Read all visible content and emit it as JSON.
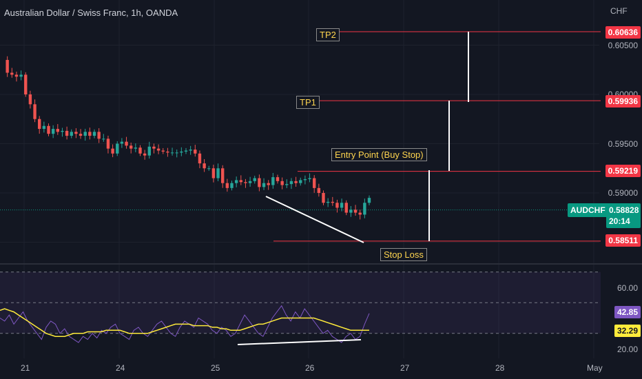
{
  "header": {
    "title": "Australian Dollar / Swiss Franc, 1h, OANDA",
    "currency": "CHF"
  },
  "price_axis": {
    "labels": [
      "0.60500",
      "0.60000",
      "0.59500",
      "0.59000"
    ]
  },
  "rsi_axis": {
    "labels": [
      "60.00",
      "20.00"
    ]
  },
  "time_axis": {
    "labels": [
      "21",
      "24",
      "25",
      "26",
      "27",
      "28",
      "May"
    ]
  },
  "annotations": {
    "tp2": "TP2",
    "tp1": "TP1",
    "entry": "Entry Point (Buy Stop)",
    "stop": "Stop Loss"
  },
  "price_tags": {
    "tp2": "0.60636",
    "tp1": "0.59936",
    "entry": "0.59219",
    "stop": "0.58511",
    "symbol": "AUDCHF",
    "current": "0.58828",
    "countdown": "20:14"
  },
  "rsi_tags": {
    "rsi": "42.85",
    "ma": "32.29"
  },
  "colors": {
    "up": "#26a69a",
    "down": "#ef5350",
    "level": "#f23645",
    "rsi": "#7e57c2",
    "rsi_ma": "#ffeb3b",
    "annotation": "#ffd54f"
  },
  "chart_data": {
    "type": "candlestick",
    "symbol": "AUDCHF",
    "timeframe": "1h",
    "ylim": [
      0.583,
      0.6075
    ],
    "levels": [
      {
        "name": "TP2",
        "value": 0.60636
      },
      {
        "name": "TP1",
        "value": 0.59936
      },
      {
        "name": "Entry Point (Buy Stop)",
        "value": 0.59219
      },
      {
        "name": "Stop Loss",
        "value": 0.58511
      }
    ],
    "last_price": 0.58828,
    "close_path": [
      0.6035,
      0.6022,
      0.602,
      0.6018,
      0.602,
      0.6,
      0.599,
      0.5975,
      0.5965,
      0.5968,
      0.596,
      0.5965,
      0.5962,
      0.5963,
      0.5958,
      0.5962,
      0.596,
      0.5958,
      0.5962,
      0.5958,
      0.5962,
      0.5955,
      0.5955,
      0.5945,
      0.594,
      0.595,
      0.5952,
      0.5948,
      0.5945,
      0.5946,
      0.594,
      0.5938,
      0.5947,
      0.5945,
      0.5943,
      0.5942,
      0.5941,
      0.5941,
      0.5941,
      0.5942,
      0.5943,
      0.5944,
      0.594,
      0.593,
      0.5925,
      0.5925,
      0.5915,
      0.5925,
      0.591,
      0.5905,
      0.591,
      0.5913,
      0.5911,
      0.591,
      0.5912,
      0.5915,
      0.5906,
      0.591,
      0.5908,
      0.5916,
      0.5912,
      0.5908,
      0.5909,
      0.5912,
      0.591,
      0.5913,
      0.5914,
      0.5915,
      0.5905,
      0.59,
      0.589,
      0.5891,
      0.589,
      0.5885,
      0.589,
      0.588,
      0.5883,
      0.588,
      0.5878,
      0.589,
      0.5895
    ],
    "rsi": {
      "name": "RSI",
      "value": 42.85,
      "ma_value": 32.29,
      "levels": [
        70,
        50,
        30
      ],
      "ylim": [
        15,
        75
      ],
      "rsi_path": [
        40,
        38,
        42,
        36,
        40,
        44,
        38,
        34,
        30,
        26,
        34,
        38,
        36,
        30,
        33,
        28,
        26,
        24,
        28,
        26,
        30,
        27,
        32,
        30,
        34,
        36,
        30,
        28,
        26,
        32,
        34,
        30,
        28,
        32,
        36,
        38,
        34,
        30,
        28,
        34,
        38,
        36,
        34,
        40,
        38,
        36,
        32,
        30,
        34,
        32,
        28,
        30,
        36,
        42,
        38,
        34,
        30,
        28,
        34,
        40,
        44,
        48,
        42,
        38,
        44,
        40,
        46,
        42,
        38,
        34,
        30,
        32,
        28,
        26,
        24,
        28,
        30,
        26,
        28,
        36,
        43
      ],
      "ma_path": [
        45,
        46,
        45,
        44,
        42,
        40,
        38,
        36,
        34,
        32,
        30,
        29,
        28,
        28,
        28,
        29,
        30,
        30,
        30,
        31,
        31,
        31,
        31,
        32,
        32,
        32,
        32,
        31,
        30,
        30,
        30,
        30,
        30,
        31,
        32,
        33,
        34,
        35,
        36,
        36,
        36,
        36,
        35,
        35,
        35,
        35,
        34,
        34,
        33,
        33,
        32,
        32,
        32,
        33,
        34,
        35,
        36,
        36,
        37,
        38,
        39,
        40,
        40,
        40,
        40,
        40,
        40,
        40,
        40,
        39,
        38,
        37,
        36,
        35,
        34,
        33,
        32,
        32,
        32,
        32,
        32
      ]
    },
    "x_labels": [
      "21",
      "24",
      "25",
      "26",
      "27",
      "28",
      "May"
    ]
  }
}
